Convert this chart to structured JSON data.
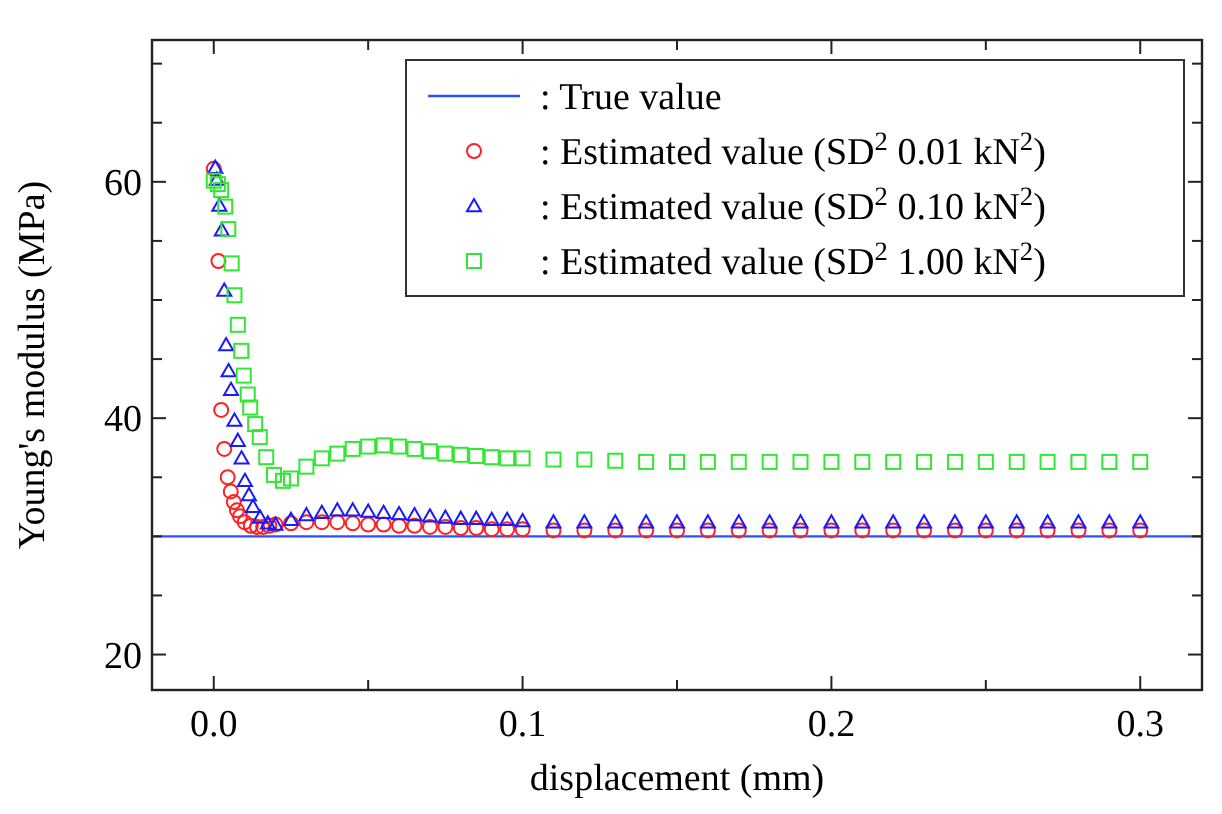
{
  "chart_data": {
    "type": "scatter",
    "xlabel": "displacement (mm)",
    "ylabel": "Young's modulus (MPa)",
    "xlim": [
      -0.02,
      0.32
    ],
    "ylim": [
      17,
      72
    ],
    "xticks": [
      {
        "value": 0,
        "label": "0.0"
      },
      {
        "value": 0.05,
        "label": null
      },
      {
        "value": 0.1,
        "label": "0.1"
      },
      {
        "value": 0.15,
        "label": null
      },
      {
        "value": 0.2,
        "label": "0.2"
      },
      {
        "value": 0.25,
        "label": null
      },
      {
        "value": 0.3,
        "label": "0.3"
      }
    ],
    "yticks": [
      20,
      {
        "value": 25,
        "label": null
      },
      {
        "value": 30,
        "label": null
      },
      {
        "value": 35,
        "label": null
      },
      40,
      {
        "value": 45,
        "label": null
      },
      {
        "value": 50,
        "label": null
      },
      {
        "value": 55,
        "label": null
      },
      60,
      {
        "value": 65,
        "label": null
      },
      {
        "value": 70,
        "label": null
      }
    ],
    "grid": false,
    "legend": "top right",
    "series": [
      {
        "name": ": True value",
        "type": "line",
        "color": "#2f4fff",
        "line_style": "solid",
        "marker": "none",
        "x": [
          -0.02,
          0.32
        ],
        "values": [
          30,
          30
        ]
      },
      {
        "name": ": Estimated value (SD$^{2}$ 0.01 kN$^{2}$)",
        "marker": "circle",
        "color": "#ff2020",
        "x": [
          0,
          0.0015,
          0.0024,
          0.0034,
          0.0045,
          0.0055,
          0.0065,
          0.0075,
          0.0085,
          0.01,
          0.012,
          0.014,
          0.016,
          0.018,
          0.02,
          0.025,
          0.03,
          0.035,
          0.04,
          0.045,
          0.05,
          0.055,
          0.06,
          0.065,
          0.07,
          0.075,
          0.08,
          0.085,
          0.09,
          0.095,
          0.1,
          0.11,
          0.12,
          0.13,
          0.14,
          0.15,
          0.16,
          0.17,
          0.18,
          0.19,
          0.2,
          0.21,
          0.22,
          0.23,
          0.24,
          0.25,
          0.26,
          0.27,
          0.28,
          0.29,
          0.3
        ],
        "values": [
          61.1,
          53.3,
          40.7,
          37.4,
          35.0,
          33.8,
          32.9,
          32.2,
          31.7,
          31.2,
          30.9,
          30.8,
          30.8,
          30.9,
          31.0,
          31.1,
          31.2,
          31.2,
          31.2,
          31.1,
          31.0,
          31.0,
          30.9,
          30.9,
          30.8,
          30.8,
          30.7,
          30.7,
          30.6,
          30.6,
          30.6,
          30.5,
          30.5,
          30.5,
          30.5,
          30.5,
          30.5,
          30.5,
          30.5,
          30.5,
          30.5,
          30.5,
          30.5,
          30.5,
          30.5,
          30.5,
          30.5,
          30.5,
          30.5,
          30.5,
          30.5
        ]
      },
      {
        "name": ": Estimated value (SD$^{2}$ 0.10 kN$^{2}$)",
        "marker": "triangle",
        "color": "#1a1aff",
        "x": [
          0.0005,
          0.001,
          0.0018,
          0.0026,
          0.0034,
          0.004,
          0.0048,
          0.0056,
          0.0067,
          0.0078,
          0.009,
          0.0101,
          0.0114,
          0.0127,
          0.015,
          0.0175,
          0.02,
          0.025,
          0.03,
          0.035,
          0.04,
          0.045,
          0.05,
          0.055,
          0.06,
          0.065,
          0.07,
          0.075,
          0.08,
          0.085,
          0.09,
          0.095,
          0.1,
          0.11,
          0.12,
          0.13,
          0.14,
          0.15,
          0.16,
          0.17,
          0.18,
          0.19,
          0.2,
          0.21,
          0.22,
          0.23,
          0.24,
          0.25,
          0.26,
          0.27,
          0.28,
          0.29,
          0.3
        ],
        "values": [
          61.2,
          60.2,
          58.0,
          55.9,
          50.8,
          46.2,
          44.0,
          42.4,
          39.8,
          38.1,
          36.6,
          34.7,
          33.5,
          32.5,
          31.6,
          31.1,
          31.0,
          31.4,
          31.8,
          32.0,
          32.2,
          32.2,
          32.1,
          32.0,
          31.9,
          31.8,
          31.7,
          31.6,
          31.5,
          31.5,
          31.4,
          31.4,
          31.3,
          31.2,
          31.2,
          31.2,
          31.2,
          31.2,
          31.2,
          31.2,
          31.2,
          31.2,
          31.2,
          31.2,
          31.2,
          31.2,
          31.2,
          31.2,
          31.2,
          31.2,
          31.2,
          31.2,
          31.2
        ]
      },
      {
        "name": ": Estimated value (SD$^{2}$ 1.00 kN$^{2}$)",
        "marker": "square",
        "color": "#33e633",
        "x": [
          0,
          0.0013,
          0.0024,
          0.0037,
          0.0047,
          0.0058,
          0.0067,
          0.0078,
          0.0089,
          0.0097,
          0.011,
          0.0118,
          0.0134,
          0.0149,
          0.017,
          0.0195,
          0.0224,
          0.025,
          0.03,
          0.035,
          0.04,
          0.045,
          0.05,
          0.055,
          0.06,
          0.065,
          0.07,
          0.075,
          0.08,
          0.085,
          0.09,
          0.095,
          0.1,
          0.11,
          0.12,
          0.13,
          0.14,
          0.15,
          0.16,
          0.17,
          0.18,
          0.19,
          0.2,
          0.21,
          0.22,
          0.23,
          0.24,
          0.25,
          0.26,
          0.27,
          0.28,
          0.29,
          0.3
        ],
        "values": [
          60.1,
          59.8,
          59.3,
          57.9,
          56.0,
          53.1,
          50.4,
          47.9,
          45.7,
          43.6,
          42.0,
          40.9,
          39.5,
          38.4,
          36.7,
          35.2,
          34.7,
          34.9,
          35.9,
          36.6,
          37.0,
          37.4,
          37.6,
          37.7,
          37.6,
          37.4,
          37.2,
          37.0,
          36.9,
          36.8,
          36.7,
          36.6,
          36.6,
          36.5,
          36.5,
          36.4,
          36.3,
          36.3,
          36.3,
          36.3,
          36.3,
          36.3,
          36.3,
          36.3,
          36.3,
          36.3,
          36.3,
          36.3,
          36.3,
          36.3,
          36.3,
          36.3,
          36.3
        ]
      }
    ]
  }
}
